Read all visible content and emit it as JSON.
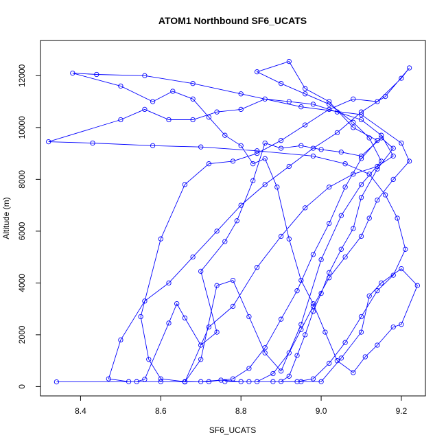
{
  "chart_data": {
    "type": "line",
    "title": "ATOM1 Northbound SF6_UCATS",
    "xlabel": "SF6_UCATS",
    "ylabel": "Altitude (m)",
    "xlim": [
      8.3,
      9.26
    ],
    "ylim": [
      -360,
      13360
    ],
    "x_ticks": [
      8.4,
      8.6,
      8.8,
      9.0,
      9.2
    ],
    "x_tick_labels": [
      "8.4",
      "8.6",
      "8.8",
      "9.0",
      "9.2"
    ],
    "y_ticks": [
      0,
      2000,
      4000,
      6000,
      8000,
      10000,
      12000
    ],
    "y_tick_labels": [
      "0",
      "2000",
      "4000",
      "6000",
      "8000",
      "10000",
      "12000"
    ],
    "marker": "open-circle",
    "grid": false,
    "legend": "none",
    "series": [
      {
        "color": "#0000ff",
        "points": [
          [
            8.34,
            180
          ],
          [
            8.54,
            190
          ],
          [
            8.56,
            280
          ],
          [
            8.62,
            2450
          ],
          [
            8.64,
            3200
          ],
          [
            8.66,
            2650
          ],
          [
            8.7,
            1600
          ],
          [
            8.74,
            2100
          ],
          [
            8.7,
            4450
          ],
          [
            8.76,
            5600
          ],
          [
            8.79,
            6400
          ],
          [
            8.83,
            7950
          ],
          [
            8.86,
            9400
          ],
          [
            8.9,
            9200
          ],
          [
            8.95,
            9300
          ],
          [
            9.0,
            9150
          ],
          [
            9.05,
            9050
          ],
          [
            9.1,
            8900
          ],
          [
            9.15,
            9600
          ],
          [
            9.18,
            9200
          ],
          [
            9.14,
            8400
          ],
          [
            9.1,
            7300
          ],
          [
            9.08,
            6100
          ],
          [
            9.05,
            5300
          ],
          [
            9.02,
            4400
          ],
          [
            9.0,
            3600
          ],
          [
            8.98,
            2900
          ],
          [
            8.96,
            2000
          ],
          [
            8.94,
            1200
          ],
          [
            8.92,
            400
          ],
          [
            8.9,
            200
          ],
          [
            8.95,
            190
          ],
          [
            9.0,
            190
          ],
          [
            9.05,
            1100
          ],
          [
            9.1,
            2100
          ],
          [
            9.12,
            3500
          ],
          [
            9.15,
            4000
          ],
          [
            9.2,
            4550
          ],
          [
            9.24,
            3900
          ],
          [
            9.2,
            2400
          ],
          [
            9.18,
            2300
          ],
          [
            9.14,
            1600
          ],
          [
            9.11,
            1150
          ],
          [
            9.08,
            540
          ],
          [
            9.04,
            1000
          ],
          [
            9.01,
            2100
          ],
          [
            8.98,
            3200
          ],
          [
            8.95,
            4100
          ],
          [
            8.92,
            5700
          ],
          [
            8.89,
            7700
          ],
          [
            8.86,
            8800
          ],
          [
            8.83,
            8600
          ],
          [
            8.8,
            9300
          ],
          [
            8.76,
            9700
          ],
          [
            8.72,
            10400
          ],
          [
            8.68,
            11100
          ],
          [
            8.63,
            11400
          ],
          [
            8.58,
            11000
          ],
          [
            8.5,
            11600
          ],
          [
            8.38,
            12100
          ],
          [
            8.44,
            12050
          ],
          [
            8.56,
            12000
          ],
          [
            8.68,
            11700
          ],
          [
            8.8,
            11300
          ],
          [
            8.95,
            10800
          ],
          [
            9.1,
            10500
          ],
          [
            9.2,
            9400
          ],
          [
            9.22,
            8700
          ],
          [
            9.18,
            8000
          ],
          [
            9.14,
            7200
          ],
          [
            9.12,
            6500
          ],
          [
            9.1,
            5800
          ],
          [
            9.06,
            5000
          ],
          [
            9.02,
            4200
          ],
          [
            8.98,
            3100
          ],
          [
            8.95,
            2200
          ],
          [
            8.92,
            1300
          ],
          [
            8.88,
            500
          ],
          [
            8.84,
            190
          ],
          [
            8.8,
            190
          ],
          [
            8.75,
            250
          ],
          [
            8.7,
            190
          ],
          [
            8.66,
            180
          ],
          [
            8.7,
            1050
          ],
          [
            8.74,
            3900
          ],
          [
            8.78,
            4100
          ],
          [
            8.82,
            2700
          ],
          [
            8.86,
            1300
          ],
          [
            8.9,
            600
          ],
          [
            8.95,
            2400
          ],
          [
            9.0,
            4900
          ],
          [
            9.05,
            6600
          ],
          [
            9.1,
            7800
          ],
          [
            9.15,
            8700
          ],
          [
            9.12,
            9600
          ],
          [
            9.08,
            10200
          ],
          [
            9.02,
            10900
          ],
          [
            8.96,
            11300
          ],
          [
            8.9,
            11700
          ],
          [
            8.84,
            12150
          ],
          [
            8.92,
            12550
          ],
          [
            8.96,
            11500
          ],
          [
            9.02,
            11000
          ],
          [
            9.08,
            10000
          ],
          [
            9.14,
            9500
          ],
          [
            9.1,
            8800
          ],
          [
            9.06,
            7700
          ],
          [
            9.02,
            6300
          ],
          [
            8.98,
            5100
          ],
          [
            8.94,
            3700
          ],
          [
            8.9,
            2600
          ],
          [
            8.86,
            1500
          ],
          [
            8.82,
            700
          ],
          [
            8.78,
            300
          ],
          [
            8.72,
            190
          ],
          [
            8.66,
            190
          ],
          [
            8.6,
            300
          ],
          [
            8.57,
            1050
          ],
          [
            8.55,
            2700
          ],
          [
            8.6,
            5700
          ],
          [
            8.66,
            7800
          ],
          [
            8.72,
            8600
          ],
          [
            8.78,
            8700
          ],
          [
            8.84,
            9000
          ],
          [
            8.9,
            9500
          ],
          [
            8.96,
            10100
          ],
          [
            9.02,
            10700
          ],
          [
            9.08,
            11100
          ],
          [
            9.14,
            11000
          ],
          [
            9.2,
            11900
          ],
          [
            9.22,
            12300
          ],
          [
            9.16,
            11200
          ],
          [
            9.1,
            10600
          ],
          [
            9.04,
            9800
          ],
          [
            8.98,
            9200
          ],
          [
            8.92,
            8500
          ],
          [
            8.86,
            7800
          ],
          [
            8.8,
            7000
          ],
          [
            8.74,
            6000
          ],
          [
            8.68,
            5000
          ],
          [
            8.62,
            4000
          ],
          [
            8.56,
            3300
          ],
          [
            8.5,
            1800
          ],
          [
            8.47,
            300
          ],
          [
            8.52,
            190
          ],
          [
            8.6,
            190
          ],
          [
            8.66,
            180
          ],
          [
            8.72,
            2300
          ],
          [
            8.78,
            3100
          ],
          [
            8.84,
            4600
          ],
          [
            8.9,
            5800
          ],
          [
            8.96,
            6900
          ],
          [
            9.02,
            7700
          ],
          [
            9.08,
            8200
          ],
          [
            9.14,
            8500
          ],
          [
            9.18,
            8900
          ],
          [
            9.15,
            9700
          ],
          [
            9.1,
            10300
          ],
          [
            9.04,
            10600
          ],
          [
            8.98,
            10900
          ],
          [
            8.92,
            11000
          ],
          [
            8.86,
            11100
          ],
          [
            8.8,
            10700
          ],
          [
            8.74,
            10600
          ],
          [
            8.68,
            10300
          ],
          [
            8.62,
            10300
          ],
          [
            8.56,
            10700
          ],
          [
            8.5,
            10300
          ],
          [
            8.32,
            9450
          ],
          [
            8.43,
            9400
          ],
          [
            8.58,
            9300
          ],
          [
            8.7,
            9250
          ],
          [
            8.84,
            9100
          ],
          [
            8.98,
            8900
          ],
          [
            9.06,
            8600
          ],
          [
            9.12,
            8200
          ],
          [
            9.16,
            7400
          ],
          [
            9.19,
            6500
          ],
          [
            9.21,
            5300
          ],
          [
            9.18,
            4300
          ],
          [
            9.14,
            3700
          ],
          [
            9.1,
            2700
          ],
          [
            9.06,
            1700
          ],
          [
            9.02,
            900
          ],
          [
            8.98,
            300
          ],
          [
            8.94,
            190
          ],
          [
            8.88,
            190
          ],
          [
            8.82,
            190
          ],
          [
            8.76,
            190
          ]
        ]
      }
    ]
  }
}
